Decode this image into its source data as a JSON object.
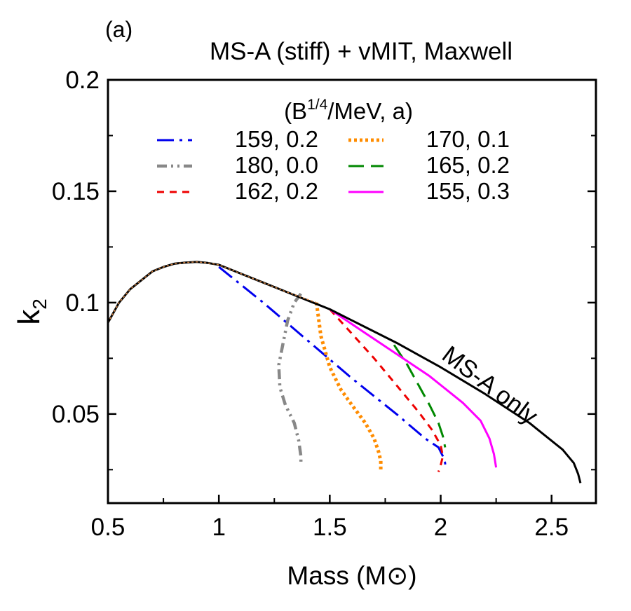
{
  "panel_label": "(a)",
  "chart_data": {
    "type": "line",
    "title": "MS-A (stiff) + vMIT, Maxwell",
    "xlabel": "Mass (M⊙)",
    "ylabel_main": "k",
    "ylabel_sub": "2",
    "xlim": [
      0.5,
      2.7
    ],
    "ylim": [
      0.01,
      0.2
    ],
    "xticks": [
      0.5,
      1,
      1.5,
      2,
      2.5
    ],
    "xtick_labels": [
      "0.5",
      "1",
      "1.5",
      "2",
      "2.5"
    ],
    "yticks": [
      0.05,
      0.1,
      0.15,
      0.2
    ],
    "ytick_labels": [
      "0.05",
      "0.1",
      "0.15",
      "0.2"
    ],
    "grid": false,
    "legend": {
      "title_prefix": "(B",
      "title_sup": "1/4",
      "title_suffix": "/MeV, a)",
      "placement": "top-center"
    },
    "annotation": {
      "text": "MS-A only",
      "x": 2.2,
      "y": 0.06,
      "rotation_deg": 37
    },
    "series": [
      {
        "name": "159, 0.2",
        "color": "#0000ee",
        "dash": "24,8,4,8",
        "width": 3,
        "x": [
          1.0,
          1.2,
          1.4,
          1.6,
          1.8,
          1.93,
          1.99,
          2.01,
          2.02,
          2.02
        ],
        "y": [
          0.116,
          0.1,
          0.083,
          0.066,
          0.05,
          0.039,
          0.035,
          0.031,
          0.028,
          0.025
        ]
      },
      {
        "name": "180, 0.0",
        "color": "#888888",
        "dash": "14,6,3,6,3,6",
        "width": 4.5,
        "x": [
          1.37,
          1.34,
          1.31,
          1.29,
          1.27,
          1.275,
          1.3,
          1.34,
          1.36,
          1.37,
          1.37
        ],
        "y": [
          0.104,
          0.1,
          0.092,
          0.082,
          0.072,
          0.062,
          0.054,
          0.046,
          0.038,
          0.031,
          0.027
        ]
      },
      {
        "name": "162, 0.2",
        "color": "#ee0000",
        "dash": "10,8",
        "width": 3,
        "x": [
          1.5,
          1.6,
          1.7,
          1.8,
          1.9,
          1.96,
          2.0,
          2.01,
          2.0,
          1.99
        ],
        "y": [
          0.097,
          0.086,
          0.075,
          0.063,
          0.051,
          0.043,
          0.036,
          0.031,
          0.027,
          0.024
        ]
      },
      {
        "name": "170, 0.1",
        "color": "#ff8c00",
        "dash": "4,4",
        "width": 5,
        "x": [
          1.44,
          1.46,
          1.5,
          1.55,
          1.6,
          1.66,
          1.7,
          1.72,
          1.73,
          1.73
        ],
        "y": [
          0.1,
          0.085,
          0.071,
          0.061,
          0.054,
          0.046,
          0.039,
          0.033,
          0.029,
          0.025
        ]
      },
      {
        "name": "165, 0.2",
        "color": "#008800",
        "dash": "22,10",
        "width": 3,
        "x": [
          1.79,
          1.85,
          1.9,
          1.95,
          1.99,
          2.01,
          2.02
        ],
        "y": [
          0.081,
          0.072,
          0.063,
          0.054,
          0.046,
          0.04,
          0.035
        ]
      },
      {
        "name": "155, 0.3",
        "color": "#ff00ff",
        "dash": "",
        "width": 3,
        "x": [
          1.5,
          1.65,
          1.8,
          1.95,
          2.1,
          2.18,
          2.22,
          2.24,
          2.25
        ],
        "y": [
          0.097,
          0.087,
          0.077,
          0.067,
          0.055,
          0.047,
          0.039,
          0.032,
          0.026
        ]
      },
      {
        "name": "",
        "color": "#000000",
        "dash": "",
        "width": 3,
        "x": [
          0.5,
          0.55,
          0.6,
          0.65,
          0.7,
          0.75,
          0.8,
          0.85,
          0.9,
          0.95,
          1.0,
          1.1,
          1.2,
          1.3,
          1.4,
          1.5,
          1.6,
          1.8,
          2.0,
          2.2,
          2.4,
          2.55,
          2.6,
          2.62,
          2.63
        ],
        "y": [
          0.091,
          0.1,
          0.106,
          0.11,
          0.114,
          0.116,
          0.1175,
          0.118,
          0.1183,
          0.1178,
          0.117,
          0.113,
          0.109,
          0.105,
          0.101,
          0.097,
          0.092,
          0.082,
          0.071,
          0.059,
          0.046,
          0.034,
          0.028,
          0.023,
          0.019
        ]
      },
      {
        "name": "",
        "color": "#d08040",
        "dash": "3,3",
        "width": 1.5,
        "x": [
          0.5,
          0.55,
          0.6,
          0.65,
          0.7,
          0.75,
          0.8,
          0.85,
          0.9,
          0.95,
          1.0,
          1.1,
          1.2,
          1.3,
          1.44
        ],
        "y": [
          0.091,
          0.1,
          0.106,
          0.11,
          0.114,
          0.116,
          0.1175,
          0.118,
          0.1183,
          0.1178,
          0.117,
          0.113,
          0.109,
          0.105,
          0.1
        ]
      }
    ]
  }
}
